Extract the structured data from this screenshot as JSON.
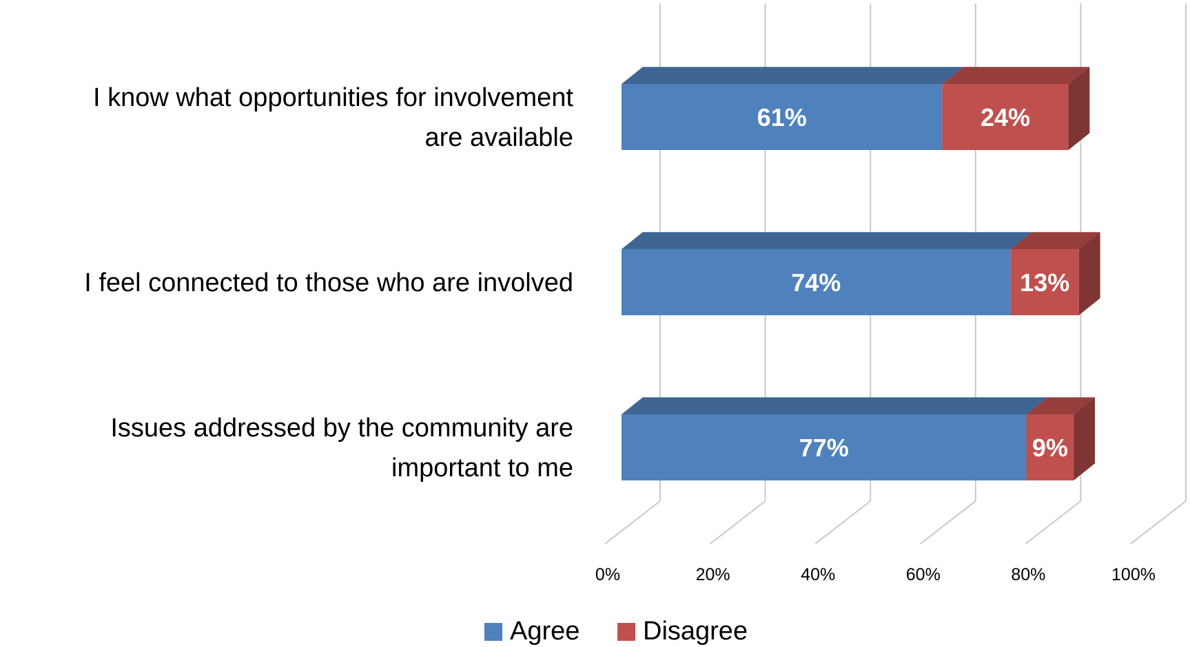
{
  "chart_data": {
    "type": "bar",
    "orientation": "horizontal",
    "stacked": true,
    "style": "3d",
    "categories": [
      [
        "I know what opportunities for involvement",
        "are available"
      ],
      [
        "I feel connected to those who are involved"
      ],
      [
        "Issues addressed by the community are",
        "important to me"
      ]
    ],
    "series": [
      {
        "name": "Agree",
        "values": [
          61,
          74,
          77
        ],
        "labels": [
          "61%",
          "74%",
          "77%"
        ],
        "color": "#4F81BD"
      },
      {
        "name": "Disagree",
        "values": [
          24,
          13,
          9
        ],
        "labels": [
          "24%",
          "13%",
          "9%"
        ],
        "color": "#C0504D"
      }
    ],
    "x_ticks": [
      "0%",
      "20%",
      "40%",
      "60%",
      "80%",
      "100%"
    ],
    "xlim": [
      0,
      100
    ],
    "grid": true,
    "legend": "bottom"
  }
}
